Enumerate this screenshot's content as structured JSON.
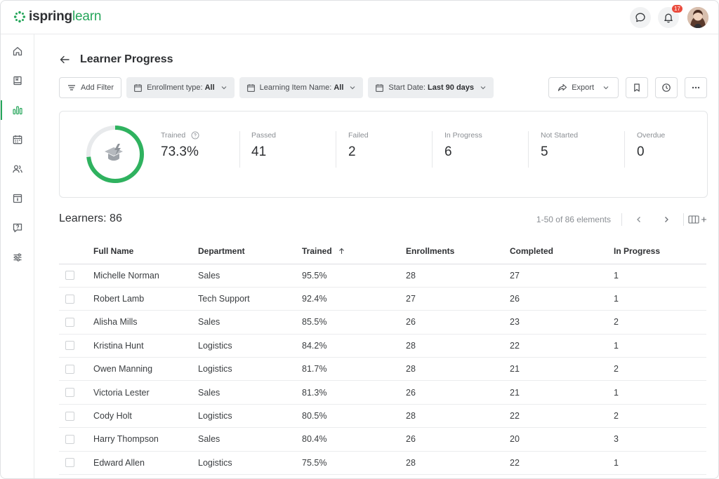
{
  "brand": {
    "name_bold": "ispring",
    "name_light": "learn",
    "accent": "#26a65b"
  },
  "topbar": {
    "notifications_count": "17",
    "chat_icon": "chat-bubble-icon",
    "bell_icon": "bell-icon"
  },
  "sidebar": {
    "items": [
      {
        "icon": "home-icon"
      },
      {
        "icon": "book-icon"
      },
      {
        "icon": "bar-chart-icon",
        "active": true
      },
      {
        "icon": "calendar-icon"
      },
      {
        "icon": "users-icon"
      },
      {
        "icon": "info-card-icon"
      },
      {
        "icon": "question-icon"
      },
      {
        "icon": "sliders-icon"
      }
    ]
  },
  "page": {
    "title": "Learner Progress"
  },
  "filters": {
    "add_filter": "Add Filter",
    "enrollment_label": "Enrollment type:",
    "enrollment_value": "All",
    "item_label": "Learning Item Name:",
    "item_value": "All",
    "date_label": "Start Date:",
    "date_value": "Last 90 days"
  },
  "actions": {
    "export": "Export"
  },
  "stats": {
    "trained_label": "Trained",
    "trained_value": "73.3%",
    "trained_fraction": 0.733,
    "passed_label": "Passed",
    "passed_value": "41",
    "failed_label": "Failed",
    "failed_value": "2",
    "in_progress_label": "In Progress",
    "in_progress_value": "6",
    "not_started_label": "Not Started",
    "not_started_value": "5",
    "overdue_label": "Overdue",
    "overdue_value": "0"
  },
  "learners": {
    "title": "Learners: 86",
    "pager": "1-50 of 86 elements"
  },
  "table": {
    "headers": {
      "name": "Full Name",
      "department": "Department",
      "trained": "Trained",
      "enrollments": "Enrollments",
      "completed": "Completed",
      "in_progress": "In Progress"
    },
    "rows": [
      {
        "name": "Michelle Norman",
        "department": "Sales",
        "trained": "95.5%",
        "enrollments": "28",
        "completed": "27",
        "in_progress": "1"
      },
      {
        "name": "Robert Lamb",
        "department": "Tech Support",
        "trained": "92.4%",
        "enrollments": "27",
        "completed": "26",
        "in_progress": "1"
      },
      {
        "name": "Alisha Mills",
        "department": "Sales",
        "trained": "85.5%",
        "enrollments": "26",
        "completed": "23",
        "in_progress": "2"
      },
      {
        "name": "Kristina Hunt",
        "department": "Logistics",
        "trained": "84.2%",
        "enrollments": "28",
        "completed": "22",
        "in_progress": "1"
      },
      {
        "name": "Owen Manning",
        "department": "Logistics",
        "trained": "81.7%",
        "enrollments": "28",
        "completed": "21",
        "in_progress": "2"
      },
      {
        "name": "Victoria Lester",
        "department": "Sales",
        "trained": "81.3%",
        "enrollments": "26",
        "completed": "21",
        "in_progress": "1"
      },
      {
        "name": "Cody Holt",
        "department": "Logistics",
        "trained": "80.5%",
        "enrollments": "28",
        "completed": "22",
        "in_progress": "2"
      },
      {
        "name": "Harry Thompson",
        "department": "Sales",
        "trained": "80.4%",
        "enrollments": "26",
        "completed": "20",
        "in_progress": "3"
      },
      {
        "name": "Edward Allen",
        "department": "Logistics",
        "trained": "75.5%",
        "enrollments": "28",
        "completed": "22",
        "in_progress": "1"
      }
    ]
  }
}
